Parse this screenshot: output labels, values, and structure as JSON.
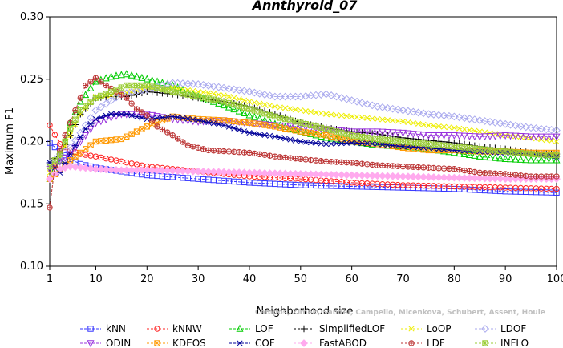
{
  "chart_data": {
    "type": "line",
    "title": "Annthyroid_07",
    "xlabel": "Neighborhood size",
    "ylabel": "Maximum F1",
    "xlim": [
      1,
      100
    ],
    "ylim": [
      0.1,
      0.3
    ],
    "xticks": [
      1,
      10,
      20,
      30,
      40,
      50,
      60,
      70,
      80,
      90,
      100
    ],
    "yticks": [
      0.1,
      0.15,
      0.2,
      0.25,
      0.3
    ],
    "ytick_labels": [
      "0.10",
      "0.15",
      "0.20",
      "0.25",
      "0.30"
    ],
    "grid": false,
    "legend_position": "bottom",
    "series": [
      {
        "name": "kNN",
        "color": "#3333ff",
        "marker": "square",
        "points": [
          [
            1,
            0.199
          ],
          [
            3,
            0.192
          ],
          [
            5,
            0.186
          ],
          [
            7,
            0.182
          ],
          [
            10,
            0.179
          ],
          [
            15,
            0.176
          ],
          [
            20,
            0.173
          ],
          [
            30,
            0.17
          ],
          [
            40,
            0.167
          ],
          [
            50,
            0.165
          ],
          [
            60,
            0.164
          ],
          [
            70,
            0.163
          ],
          [
            80,
            0.162
          ],
          [
            90,
            0.16
          ],
          [
            100,
            0.159
          ]
        ]
      },
      {
        "name": "kNNW",
        "color": "#ff2222",
        "marker": "circle",
        "points": [
          [
            1,
            0.213
          ],
          [
            3,
            0.198
          ],
          [
            5,
            0.193
          ],
          [
            7,
            0.19
          ],
          [
            10,
            0.188
          ],
          [
            15,
            0.184
          ],
          [
            20,
            0.18
          ],
          [
            30,
            0.176
          ],
          [
            40,
            0.172
          ],
          [
            50,
            0.17
          ],
          [
            60,
            0.167
          ],
          [
            70,
            0.165
          ],
          [
            80,
            0.164
          ],
          [
            90,
            0.163
          ],
          [
            100,
            0.162
          ]
        ]
      },
      {
        "name": "LOF",
        "color": "#00cc00",
        "marker": "triangle",
        "points": [
          [
            1,
            0.17
          ],
          [
            3,
            0.185
          ],
          [
            5,
            0.215
          ],
          [
            7,
            0.232
          ],
          [
            10,
            0.248
          ],
          [
            13,
            0.252
          ],
          [
            16,
            0.254
          ],
          [
            20,
            0.25
          ],
          [
            25,
            0.245
          ],
          [
            30,
            0.236
          ],
          [
            35,
            0.229
          ],
          [
            40,
            0.221
          ],
          [
            45,
            0.214
          ],
          [
            50,
            0.208
          ],
          [
            55,
            0.203
          ],
          [
            60,
            0.2
          ],
          [
            65,
            0.197
          ],
          [
            70,
            0.196
          ],
          [
            75,
            0.194
          ],
          [
            80,
            0.191
          ],
          [
            85,
            0.188
          ],
          [
            90,
            0.186
          ],
          [
            95,
            0.185
          ],
          [
            100,
            0.185
          ]
        ]
      },
      {
        "name": "SimplifiedLOF",
        "color": "#000000",
        "marker": "plus",
        "points": [
          [
            1,
            0.183
          ],
          [
            3,
            0.19
          ],
          [
            5,
            0.205
          ],
          [
            7,
            0.222
          ],
          [
            10,
            0.235
          ],
          [
            13,
            0.236
          ],
          [
            16,
            0.236
          ],
          [
            20,
            0.24
          ],
          [
            25,
            0.238
          ],
          [
            30,
            0.235
          ],
          [
            35,
            0.232
          ],
          [
            40,
            0.228
          ],
          [
            45,
            0.222
          ],
          [
            50,
            0.215
          ],
          [
            55,
            0.211
          ],
          [
            60,
            0.208
          ],
          [
            65,
            0.206
          ],
          [
            70,
            0.203
          ],
          [
            75,
            0.201
          ],
          [
            80,
            0.199
          ],
          [
            85,
            0.196
          ],
          [
            90,
            0.194
          ],
          [
            95,
            0.191
          ],
          [
            100,
            0.19
          ]
        ]
      },
      {
        "name": "LoOP",
        "color": "#eeee00",
        "marker": "cross",
        "points": [
          [
            1,
            0.175
          ],
          [
            3,
            0.188
          ],
          [
            5,
            0.205
          ],
          [
            7,
            0.222
          ],
          [
            10,
            0.236
          ],
          [
            15,
            0.238
          ],
          [
            20,
            0.243
          ],
          [
            25,
            0.243
          ],
          [
            30,
            0.24
          ],
          [
            35,
            0.237
          ],
          [
            40,
            0.232
          ],
          [
            45,
            0.228
          ],
          [
            50,
            0.225
          ],
          [
            55,
            0.222
          ],
          [
            60,
            0.22
          ],
          [
            65,
            0.218
          ],
          [
            70,
            0.216
          ],
          [
            75,
            0.213
          ],
          [
            80,
            0.211
          ],
          [
            85,
            0.208
          ],
          [
            90,
            0.205
          ],
          [
            95,
            0.203
          ],
          [
            100,
            0.2
          ]
        ]
      },
      {
        "name": "LDOF",
        "color": "#aaaaee",
        "marker": "diamond",
        "points": [
          [
            1,
            0.182
          ],
          [
            5,
            0.195
          ],
          [
            10,
            0.225
          ],
          [
            15,
            0.238
          ],
          [
            20,
            0.242
          ],
          [
            25,
            0.247
          ],
          [
            30,
            0.246
          ],
          [
            35,
            0.243
          ],
          [
            40,
            0.24
          ],
          [
            45,
            0.236
          ],
          [
            50,
            0.236
          ],
          [
            55,
            0.238
          ],
          [
            60,
            0.233
          ],
          [
            65,
            0.228
          ],
          [
            70,
            0.225
          ],
          [
            75,
            0.222
          ],
          [
            80,
            0.22
          ],
          [
            85,
            0.217
          ],
          [
            90,
            0.214
          ],
          [
            95,
            0.211
          ],
          [
            100,
            0.209
          ]
        ]
      },
      {
        "name": "ODIN",
        "color": "#9933dd",
        "marker": "triangle-down",
        "points": [
          [
            1,
            0.178
          ],
          [
            5,
            0.19
          ],
          [
            10,
            0.215
          ],
          [
            15,
            0.222
          ],
          [
            20,
            0.222
          ],
          [
            25,
            0.218
          ],
          [
            30,
            0.216
          ],
          [
            35,
            0.217
          ],
          [
            40,
            0.215
          ],
          [
            45,
            0.213
          ],
          [
            50,
            0.212
          ],
          [
            55,
            0.21
          ],
          [
            60,
            0.208
          ],
          [
            65,
            0.208
          ],
          [
            70,
            0.207
          ],
          [
            75,
            0.205
          ],
          [
            80,
            0.205
          ],
          [
            85,
            0.204
          ],
          [
            90,
            0.205
          ],
          [
            95,
            0.204
          ],
          [
            100,
            0.204
          ]
        ]
      },
      {
        "name": "KDEOS",
        "color": "#ff9900",
        "marker": "box-x",
        "points": [
          [
            1,
            0.17
          ],
          [
            5,
            0.185
          ],
          [
            10,
            0.2
          ],
          [
            15,
            0.202
          ],
          [
            20,
            0.212
          ],
          [
            25,
            0.22
          ],
          [
            30,
            0.218
          ],
          [
            35,
            0.217
          ],
          [
            40,
            0.215
          ],
          [
            45,
            0.212
          ],
          [
            50,
            0.208
          ],
          [
            55,
            0.205
          ],
          [
            60,
            0.2
          ],
          [
            65,
            0.198
          ],
          [
            70,
            0.195
          ],
          [
            75,
            0.193
          ],
          [
            80,
            0.193
          ],
          [
            85,
            0.192
          ],
          [
            90,
            0.192
          ],
          [
            95,
            0.191
          ],
          [
            100,
            0.191
          ]
        ]
      },
      {
        "name": "COF",
        "color": "#000099",
        "marker": "asterisk",
        "points": [
          [
            1,
            0.183
          ],
          [
            3,
            0.175
          ],
          [
            5,
            0.19
          ],
          [
            8,
            0.21
          ],
          [
            10,
            0.218
          ],
          [
            13,
            0.222
          ],
          [
            16,
            0.222
          ],
          [
            20,
            0.218
          ],
          [
            25,
            0.22
          ],
          [
            30,
            0.217
          ],
          [
            35,
            0.213
          ],
          [
            40,
            0.207
          ],
          [
            45,
            0.204
          ],
          [
            50,
            0.2
          ],
          [
            55,
            0.198
          ],
          [
            60,
            0.199
          ],
          [
            65,
            0.198
          ],
          [
            70,
            0.196
          ],
          [
            75,
            0.195
          ],
          [
            80,
            0.193
          ],
          [
            85,
            0.192
          ],
          [
            90,
            0.191
          ],
          [
            95,
            0.19
          ],
          [
            100,
            0.188
          ]
        ]
      },
      {
        "name": "FastABOD",
        "color": "#ffaaee",
        "marker": "diamond-filled",
        "points": [
          [
            1,
            0.17
          ],
          [
            3,
            0.178
          ],
          [
            5,
            0.18
          ],
          [
            10,
            0.178
          ],
          [
            15,
            0.177
          ],
          [
            20,
            0.177
          ],
          [
            30,
            0.176
          ],
          [
            40,
            0.175
          ],
          [
            50,
            0.174
          ],
          [
            60,
            0.173
          ],
          [
            70,
            0.172
          ],
          [
            80,
            0.171
          ],
          [
            90,
            0.17
          ],
          [
            100,
            0.17
          ]
        ]
      },
      {
        "name": "LDF",
        "color": "#bb3333",
        "marker": "circle-plus",
        "points": [
          [
            1,
            0.147
          ],
          [
            2,
            0.18
          ],
          [
            4,
            0.205
          ],
          [
            6,
            0.225
          ],
          [
            8,
            0.245
          ],
          [
            10,
            0.251
          ],
          [
            12,
            0.245
          ],
          [
            14,
            0.24
          ],
          [
            16,
            0.235
          ],
          [
            18,
            0.226
          ],
          [
            20,
            0.221
          ],
          [
            22,
            0.212
          ],
          [
            25,
            0.205
          ],
          [
            28,
            0.197
          ],
          [
            32,
            0.193
          ],
          [
            36,
            0.192
          ],
          [
            40,
            0.191
          ],
          [
            45,
            0.188
          ],
          [
            50,
            0.186
          ],
          [
            55,
            0.184
          ],
          [
            60,
            0.183
          ],
          [
            65,
            0.181
          ],
          [
            70,
            0.18
          ],
          [
            75,
            0.179
          ],
          [
            80,
            0.178
          ],
          [
            85,
            0.175
          ],
          [
            90,
            0.174
          ],
          [
            95,
            0.172
          ],
          [
            100,
            0.172
          ]
        ]
      },
      {
        "name": "INFLO",
        "color": "#99cc33",
        "marker": "box-star",
        "points": [
          [
            1,
            0.18
          ],
          [
            3,
            0.19
          ],
          [
            5,
            0.21
          ],
          [
            7,
            0.225
          ],
          [
            10,
            0.235
          ],
          [
            13,
            0.24
          ],
          [
            16,
            0.245
          ],
          [
            20,
            0.245
          ],
          [
            25,
            0.24
          ],
          [
            30,
            0.236
          ],
          [
            35,
            0.232
          ],
          [
            40,
            0.226
          ],
          [
            45,
            0.22
          ],
          [
            50,
            0.215
          ],
          [
            55,
            0.21
          ],
          [
            60,
            0.205
          ],
          [
            65,
            0.202
          ],
          [
            70,
            0.2
          ],
          [
            75,
            0.198
          ],
          [
            80,
            0.196
          ],
          [
            85,
            0.194
          ],
          [
            90,
            0.192
          ],
          [
            95,
            0.19
          ],
          [
            100,
            0.189
          ]
        ]
      }
    ],
    "annotation": "Campos, Zimek, Sander, Campello, Micenkova, Schubert, Assent, Houle"
  }
}
